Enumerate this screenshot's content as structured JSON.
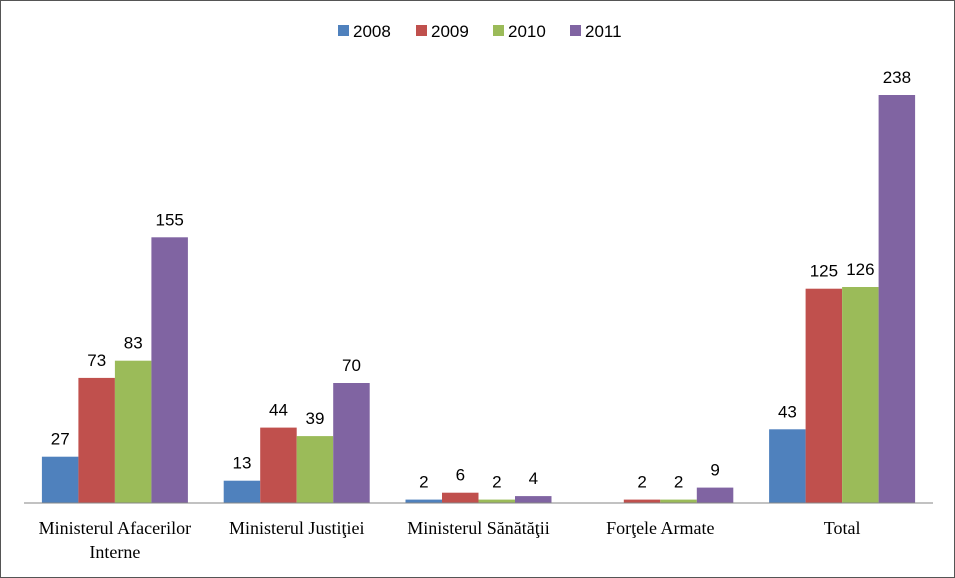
{
  "chart_data": {
    "type": "bar",
    "title": "",
    "xlabel": "",
    "ylabel": "",
    "ylim": [
      0,
      260
    ],
    "grid": false,
    "legend_position": "top",
    "categories": [
      [
        "Ministerul Afacerilor",
        "Interne"
      ],
      [
        "Ministerul Justiţiei"
      ],
      [
        "Ministerul Sănătăţii"
      ],
      [
        "Forţele Armate"
      ],
      [
        "Total"
      ]
    ],
    "series": [
      {
        "name": "2008",
        "color": "#4F81BD",
        "values": [
          27,
          13,
          2,
          null,
          43
        ]
      },
      {
        "name": "2009",
        "color": "#C0504D",
        "values": [
          73,
          44,
          6,
          2,
          125
        ]
      },
      {
        "name": "2010",
        "color": "#9BBB59",
        "values": [
          83,
          39,
          2,
          2,
          126
        ]
      },
      {
        "name": "2011",
        "color": "#8064A2",
        "values": [
          155,
          70,
          4,
          9,
          238
        ]
      }
    ]
  }
}
